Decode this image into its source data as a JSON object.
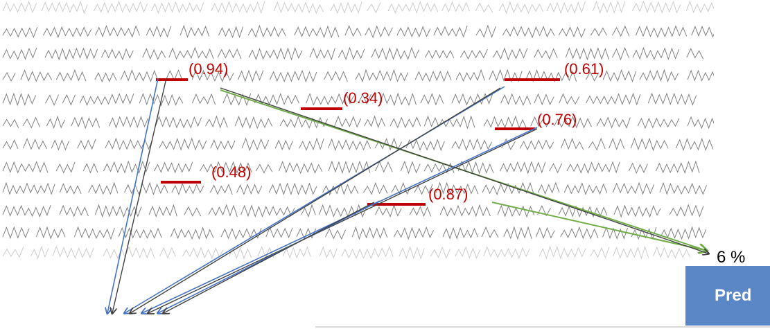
{
  "colors": {
    "score": "#c00000",
    "arrow_blue": "#4472c4",
    "arrow_green": "#70ad47",
    "arrow_gray": "#404040",
    "ink": "#6a6a6a",
    "button": "#5b87c6"
  },
  "scores": [
    {
      "id": "word-1",
      "label": "(0.94)"
    },
    {
      "id": "word-2",
      "label": "(0.61)"
    },
    {
      "id": "word-3",
      "label": "(0.34)"
    },
    {
      "id": "word-4",
      "label": "(0.76)"
    },
    {
      "id": "word-5",
      "label": "(0.48)"
    },
    {
      "id": "word-6",
      "label": "(0.87)"
    }
  ],
  "output": {
    "percent_label": "6 %",
    "predict_label": "Pred"
  }
}
